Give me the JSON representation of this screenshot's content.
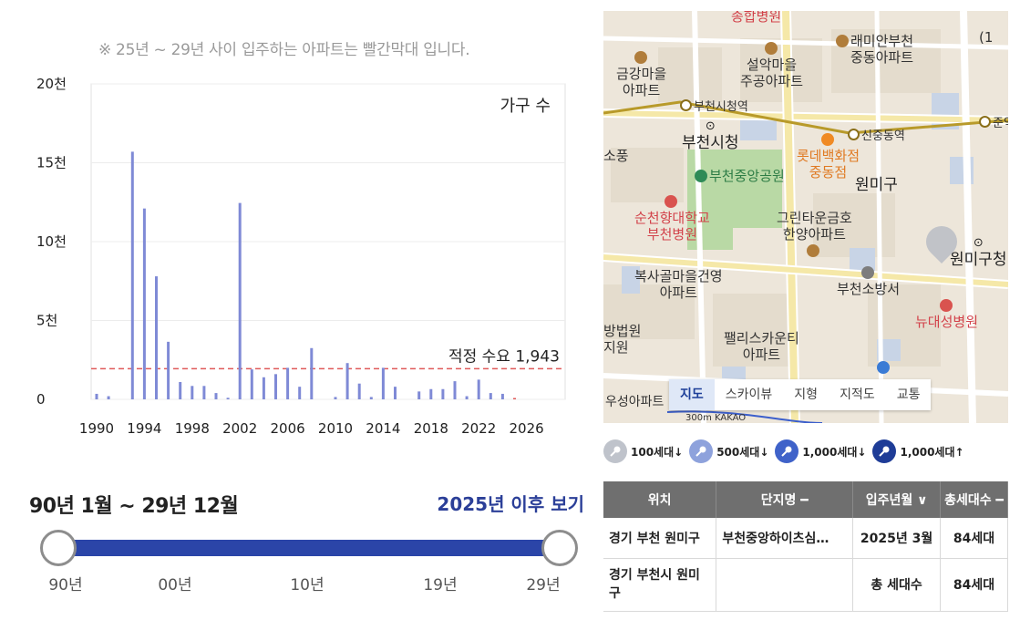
{
  "chart": {
    "note": "※ 25년 ~ 29년 사이 입주하는 아파트는 빨간막대 입니다.",
    "series_label": "가구 수",
    "reference_label": "적정 수요 1,943"
  },
  "chart_data": {
    "type": "bar",
    "title": "",
    "xlabel": "",
    "ylabel": "",
    "ylim": [
      0,
      20000
    ],
    "y_ticks": [
      "0",
      "5천",
      "10천",
      "15천",
      "20천"
    ],
    "x_ticks": [
      "1990",
      "1994",
      "1998",
      "2002",
      "2006",
      "2010",
      "2014",
      "2018",
      "2022",
      "2026"
    ],
    "xlim": [
      1990,
      2029
    ],
    "grid": true,
    "series": [
      {
        "name": "가구 수",
        "color": "#7f8ad6",
        "x": [
          1990,
          1991,
          1993,
          1994,
          1995,
          1996,
          1997,
          1998,
          1999,
          2000,
          2001,
          2002,
          2003,
          2004,
          2005,
          2006,
          2007,
          2008,
          2010,
          2011,
          2012,
          2013,
          2014,
          2015,
          2017,
          2018,
          2019,
          2020,
          2021,
          2022,
          2023,
          2024,
          2025
        ],
        "values": [
          350,
          200,
          15700,
          12100,
          7800,
          3650,
          1100,
          850,
          850,
          400,
          100,
          12450,
          1900,
          1400,
          1600,
          2000,
          800,
          3250,
          150,
          2300,
          1000,
          150,
          2000,
          800,
          500,
          650,
          650,
          1150,
          200,
          1250,
          400,
          350,
          84
        ]
      }
    ],
    "reference_line": {
      "value": 1943,
      "label": "적정 수요 1,943",
      "color": "#e05a5a"
    },
    "highlight_color": "#e05a5a"
  },
  "range": {
    "text": "90년 1월 ~ 29년 12월",
    "after_link": "2025년 이후 보기",
    "labels": [
      "90년",
      "00년",
      "10년",
      "19년",
      "29년"
    ],
    "start_year": 1990,
    "end_year": 2029
  },
  "map": {
    "pois": {
      "hospital_top": "종합병원",
      "raemian": "래미안부천\n중동아파트",
      "seolak": "설악마을\n주공아파트",
      "geumgang": "금강마을\n아파트",
      "cityhall_station": "부천시청역",
      "sinjungdong_station": "신중동역",
      "right_station": "준익",
      "cityhall": "부천시청",
      "lotte": "롯데백화점\n중동점",
      "central_park": "부천중앙공원",
      "wonmigu": "원미구",
      "left_edge1": "소풍",
      "soonchunhyang": "순천향대학교\n부천병원",
      "green_town": "그린타운금호\n한양아파트",
      "wonmigu_office": "원미구청",
      "boksagol": "복사골마을건영\n아파트",
      "fire_station": "부천소방서",
      "newdae": "뉴대성병원",
      "court": "방법원\n지원",
      "palace": "팰리스카운티\n아파트",
      "right_top_edge": "(1",
      "bottom_apt": "우성아파트",
      "scale": "300m  KAKAO"
    },
    "tabs": [
      "지도",
      "스카이뷰",
      "지형",
      "지적도",
      "교통"
    ],
    "active_tab": "지도"
  },
  "legend": [
    {
      "label": "100세대↓",
      "color": "#bfc3cb"
    },
    {
      "label": "500세대↓",
      "color": "#8ea2dc"
    },
    {
      "label": "1,000세대↓",
      "color": "#3f62c9"
    },
    {
      "label": "1,000세대↑",
      "color": "#1e3c97"
    }
  ],
  "table": {
    "headers": {
      "location": "위치",
      "complex": "단지명 ━",
      "move_in": "입주년월 ∨",
      "households": "총세대수 ━"
    },
    "rows": [
      {
        "location": "경기 부천 원미구",
        "complex": "부천중앙하이츠심…",
        "move_in": "2025년 3월",
        "households": "84세대"
      }
    ],
    "summary": {
      "location": "경기 부천시 원미구",
      "label": "총 세대수",
      "households": "84세대"
    }
  }
}
